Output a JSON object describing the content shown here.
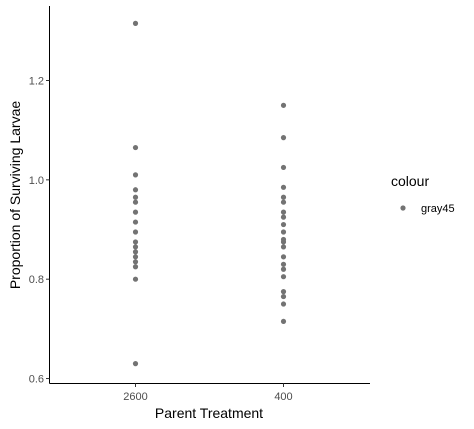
{
  "chart_data": {
    "type": "scatter",
    "xlabel": "Parent Treatment",
    "ylabel": "Proportion of Surviving Larvae",
    "categories": [
      "2600",
      "400"
    ],
    "ylim": [
      0.59,
      1.35
    ],
    "yticks": [
      0.6,
      0.8,
      1.0,
      1.2
    ],
    "ytick_labels": [
      "0.6",
      "0.8",
      "1.0",
      "1.2"
    ],
    "grid": false,
    "legend": {
      "title": "colour",
      "entries": [
        "gray45"
      ],
      "placement": "right"
    },
    "point_color": "#737373",
    "series": [
      {
        "category": "2600",
        "values": [
          1.315,
          1.065,
          1.01,
          0.98,
          0.965,
          0.955,
          0.935,
          0.915,
          0.895,
          0.875,
          0.865,
          0.855,
          0.845,
          0.835,
          0.825,
          0.8,
          0.63
        ]
      },
      {
        "category": "400",
        "values": [
          1.15,
          1.085,
          1.025,
          0.985,
          0.965,
          0.955,
          0.935,
          0.925,
          0.91,
          0.895,
          0.88,
          0.875,
          0.865,
          0.845,
          0.83,
          0.82,
          0.805,
          0.775,
          0.765,
          0.75,
          0.715
        ]
      }
    ]
  }
}
